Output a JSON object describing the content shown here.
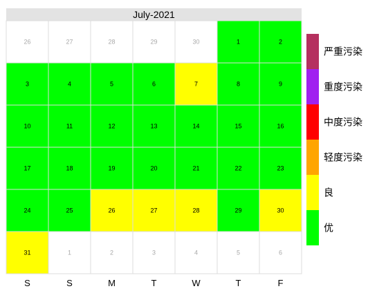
{
  "chart_data": {
    "type": "heatmap",
    "title": "July-2021",
    "weekdays": [
      "S",
      "S",
      "M",
      "T",
      "W",
      "T",
      "F"
    ],
    "weeks": [
      [
        {
          "day": "26",
          "in_month": false
        },
        {
          "day": "27",
          "in_month": false
        },
        {
          "day": "28",
          "in_month": false
        },
        {
          "day": "29",
          "in_month": false
        },
        {
          "day": "30",
          "in_month": false
        },
        {
          "day": "1",
          "in_month": true,
          "level": "优"
        },
        {
          "day": "2",
          "in_month": true,
          "level": "优"
        }
      ],
      [
        {
          "day": "3",
          "in_month": true,
          "level": "优"
        },
        {
          "day": "4",
          "in_month": true,
          "level": "优"
        },
        {
          "day": "5",
          "in_month": true,
          "level": "优"
        },
        {
          "day": "6",
          "in_month": true,
          "level": "优"
        },
        {
          "day": "7",
          "in_month": true,
          "level": "良"
        },
        {
          "day": "8",
          "in_month": true,
          "level": "优"
        },
        {
          "day": "9",
          "in_month": true,
          "level": "优"
        }
      ],
      [
        {
          "day": "10",
          "in_month": true,
          "level": "优"
        },
        {
          "day": "11",
          "in_month": true,
          "level": "优"
        },
        {
          "day": "12",
          "in_month": true,
          "level": "优"
        },
        {
          "day": "13",
          "in_month": true,
          "level": "优"
        },
        {
          "day": "14",
          "in_month": true,
          "level": "优"
        },
        {
          "day": "15",
          "in_month": true,
          "level": "优"
        },
        {
          "day": "16",
          "in_month": true,
          "level": "优"
        }
      ],
      [
        {
          "day": "17",
          "in_month": true,
          "level": "优"
        },
        {
          "day": "18",
          "in_month": true,
          "level": "优"
        },
        {
          "day": "19",
          "in_month": true,
          "level": "优"
        },
        {
          "day": "20",
          "in_month": true,
          "level": "优"
        },
        {
          "day": "21",
          "in_month": true,
          "level": "优"
        },
        {
          "day": "22",
          "in_month": true,
          "level": "优"
        },
        {
          "day": "23",
          "in_month": true,
          "level": "优"
        }
      ],
      [
        {
          "day": "24",
          "in_month": true,
          "level": "优"
        },
        {
          "day": "25",
          "in_month": true,
          "level": "优"
        },
        {
          "day": "26",
          "in_month": true,
          "level": "良"
        },
        {
          "day": "27",
          "in_month": true,
          "level": "良"
        },
        {
          "day": "28",
          "in_month": true,
          "level": "良"
        },
        {
          "day": "29",
          "in_month": true,
          "level": "优"
        },
        {
          "day": "30",
          "in_month": true,
          "level": "良"
        }
      ],
      [
        {
          "day": "31",
          "in_month": true,
          "level": "良"
        },
        {
          "day": "1",
          "in_month": false
        },
        {
          "day": "2",
          "in_month": false
        },
        {
          "day": "3",
          "in_month": false
        },
        {
          "day": "4",
          "in_month": false
        },
        {
          "day": "5",
          "in_month": false
        },
        {
          "day": "6",
          "in_month": false
        }
      ]
    ],
    "legend": [
      {
        "label": "严重污染",
        "color": "#b5305f"
      },
      {
        "label": "重度污染",
        "color": "#a020f0"
      },
      {
        "label": "中度污染",
        "color": "#ff0000"
      },
      {
        "label": "轻度污染",
        "color": "#ffa500"
      },
      {
        "label": "良",
        "color": "#ffff00"
      },
      {
        "label": "优",
        "color": "#00ff00"
      }
    ],
    "legend_placement": "right",
    "outside_day_color": "#ffffff",
    "header_color": "#e3e3e3",
    "grid_color": "#dcdcdc",
    "outside_text_color": "#a9a9a9",
    "day_text_color": "#000000"
  }
}
